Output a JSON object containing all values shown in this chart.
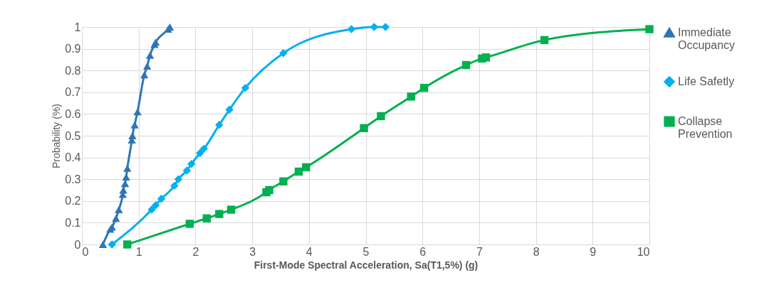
{
  "chart_data": {
    "type": "line",
    "xlabel": "First-Mode Spectral Acceleration, Sa(T1,5%) (g)",
    "ylabel": "Probability (%)",
    "xlim": [
      0,
      10
    ],
    "xticks": [
      0,
      1,
      2,
      3,
      4,
      5,
      6,
      7,
      8,
      9,
      10
    ],
    "ylim": [
      0,
      1
    ],
    "yticks": [
      0,
      0.1,
      0.2,
      0.3,
      0.4,
      0.5,
      0.6,
      0.7,
      0.8,
      0.9,
      1
    ],
    "grid": true,
    "legend": "right",
    "series": [
      {
        "name": "Immediate Occupancy",
        "color": "#2e75b6",
        "marker": "triangle",
        "x": [
          0.37,
          0.5,
          0.53,
          0.6,
          0.65,
          0.72,
          0.73,
          0.76,
          0.78,
          0.8,
          0.88,
          0.89,
          0.93,
          0.98,
          1.1,
          1.15,
          1.2,
          1.28,
          1.3,
          1.52,
          1.55
        ],
        "values": [
          0,
          0.07,
          0.08,
          0.12,
          0.16,
          0.23,
          0.25,
          0.28,
          0.31,
          0.35,
          0.48,
          0.5,
          0.55,
          0.61,
          0.78,
          0.82,
          0.87,
          0.92,
          0.93,
          0.99,
          1
        ]
      },
      {
        "name": "Life Safetly",
        "color": "#00b0f0",
        "marker": "diamond",
        "x": [
          0.53,
          1.23,
          1.3,
          1.4,
          1.63,
          1.7,
          1.85,
          1.93,
          2.08,
          2.15,
          2.42,
          2.6,
          2.88,
          3.55,
          4.75,
          5.15,
          5.35
        ],
        "values": [
          0,
          0.16,
          0.18,
          0.21,
          0.27,
          0.3,
          0.34,
          0.37,
          0.42,
          0.44,
          0.55,
          0.62,
          0.72,
          0.88,
          0.99,
          1,
          1
        ]
      },
      {
        "name": "Collapse Prevention",
        "color": "#00b050",
        "marker": "square",
        "x": [
          0.8,
          1.9,
          2.2,
          2.42,
          2.63,
          3.25,
          3.3,
          3.55,
          3.82,
          3.95,
          4.97,
          5.27,
          5.8,
          6.03,
          6.77,
          7.05,
          7.12,
          8.15,
          10
        ],
        "values": [
          0,
          0.095,
          0.12,
          0.14,
          0.16,
          0.24,
          0.25,
          0.29,
          0.335,
          0.355,
          0.535,
          0.59,
          0.68,
          0.72,
          0.825,
          0.855,
          0.86,
          0.94,
          0.99
        ]
      }
    ]
  }
}
